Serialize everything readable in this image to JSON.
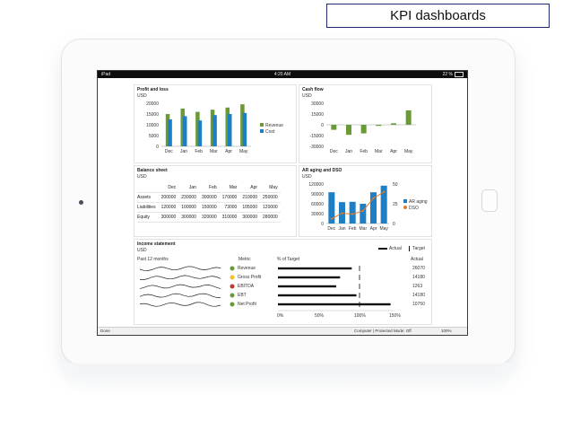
{
  "slide_title": "KPI dashboards",
  "status_bar": {
    "device": "iPad",
    "time": "4:20 AM",
    "battery": "22 %"
  },
  "colors": {
    "green": "#6a9a35",
    "blue": "#1e7fc4",
    "orange": "#e07b2a",
    "yellow": "#f2c12e",
    "red": "#c0392b"
  },
  "profit_loss": {
    "title": "Profit and loss",
    "unit": "USD",
    "legend": [
      "Revenue",
      "Cost"
    ],
    "chart_data": {
      "type": "bar",
      "categories": [
        "Dec",
        "Jan",
        "Feb",
        "Mar",
        "Apr",
        "May"
      ],
      "series": [
        {
          "name": "Revenue",
          "values": [
            15000,
            17500,
            16000,
            17000,
            18000,
            19500
          ]
        },
        {
          "name": "Cost",
          "values": [
            12500,
            14000,
            12000,
            14500,
            15000,
            15500
          ]
        }
      ],
      "yticks": [
        "20000",
        "15000",
        "10000",
        "5000",
        "0"
      ],
      "ylim": [
        0,
        20000
      ]
    }
  },
  "cash_flow": {
    "title": "Cash flow",
    "unit": "USD",
    "chart_data": {
      "type": "bar",
      "categories": [
        "Dec",
        "Jan",
        "Feb",
        "Mar",
        "Apr",
        "May"
      ],
      "values": [
        -7000,
        -14000,
        -12000,
        -1500,
        2000,
        20000
      ],
      "yticks": [
        "30000",
        "15000",
        "0",
        "-15000",
        "-30000"
      ],
      "ylim": [
        -30000,
        30000
      ]
    }
  },
  "balance_sheet": {
    "title": "Balance sheet",
    "unit": "USD",
    "columns": [
      "",
      "Dec",
      "Jan",
      "Feb",
      "Mar",
      "Apr",
      "May"
    ],
    "rows": [
      [
        "Assets",
        "200000",
        "230000",
        "300000",
        "170000",
        "210000",
        "250000"
      ],
      [
        "Liabilities",
        "120000",
        "100000",
        "150000",
        "73000",
        "105000",
        "120000"
      ],
      [
        "Equity",
        "300000",
        "300000",
        "320000",
        "310000",
        "300000",
        "280000"
      ]
    ]
  },
  "ar_aging": {
    "title": "AR aging and DSO",
    "unit": "USD",
    "legend": [
      "AR aging",
      "DSO"
    ],
    "chart_data": {
      "type": "bar",
      "categories": [
        "Dec",
        "Jan",
        "Feb",
        "Mar",
        "Apr",
        "May"
      ],
      "series": [
        {
          "name": "AR aging",
          "values": [
            95000,
            65000,
            66000,
            60000,
            95000,
            115000
          ]
        },
        {
          "name": "DSO",
          "values": [
            6,
            13,
            12,
            16,
            32,
            40
          ]
        }
      ],
      "yticks": [
        "120000",
        "90000",
        "60000",
        "30000",
        "0"
      ],
      "ylim": [
        0,
        120000
      ],
      "y2ticks": [
        "50",
        "25",
        "0"
      ],
      "y2lim": [
        0,
        50
      ]
    }
  },
  "income_statement": {
    "title": "Income statement",
    "unit": "USD",
    "legend": [
      "Actual",
      "Target"
    ],
    "columns": {
      "past": "Past 12 months",
      "metric": "Metric",
      "pct": "% of Target",
      "actual": "Actual"
    },
    "rows": [
      {
        "metric": "Revenue",
        "status": "green",
        "pct": 95,
        "target": 105,
        "actual": "26070"
      },
      {
        "metric": "Gross Profit",
        "status": "yellow",
        "pct": 80,
        "target": 105,
        "actual": "14180"
      },
      {
        "metric": "EBITDA",
        "status": "red",
        "pct": 75,
        "target": 105,
        "actual": "1263"
      },
      {
        "metric": "EBT",
        "status": "green",
        "pct": 101,
        "target": 105,
        "actual": "14180"
      },
      {
        "metric": "Net Profit",
        "status": "green",
        "pct": 145,
        "target": 105,
        "actual": "10750"
      }
    ],
    "axis": [
      "0%",
      "50%",
      "100%",
      "150%"
    ]
  },
  "footer": {
    "left": "Done",
    "zone": "Computer | Protected Mode: Off",
    "zoom": "100%"
  }
}
